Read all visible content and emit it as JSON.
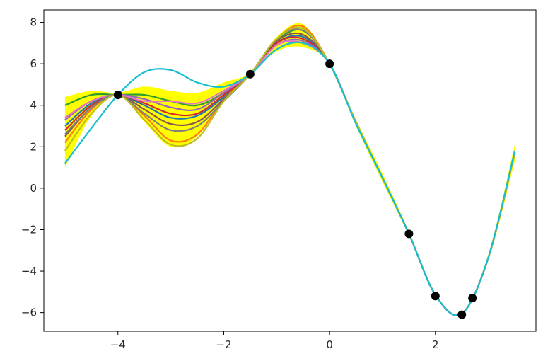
{
  "chart_data": {
    "type": "line",
    "title": "",
    "xlabel": "",
    "ylabel": "",
    "xlim": [
      -5.4,
      3.9
    ],
    "ylim": [
      -6.9,
      8.6
    ],
    "x_ticks": [
      -4,
      -2,
      0,
      2
    ],
    "x_tick_labels": [
      "−4",
      "−2",
      "0",
      "2"
    ],
    "y_ticks": [
      -6,
      -4,
      -2,
      0,
      2,
      4,
      6,
      8
    ],
    "y_tick_labels": [
      "−6",
      "−4",
      "−2",
      "0",
      "2",
      "4",
      "6",
      "8"
    ],
    "grid": false,
    "legend": "none",
    "band": {
      "color": "#ffff00",
      "x": [
        -5.0,
        -4.5,
        -4.0,
        -3.5,
        -3.0,
        -2.5,
        -2.0,
        -1.5,
        -1.0,
        -0.5,
        0.0,
        0.5,
        1.0,
        1.5,
        2.0,
        2.5,
        3.0,
        3.5
      ],
      "lower": [
        1.0,
        3.5,
        4.5,
        3.2,
        2.0,
        2.5,
        4.2,
        5.5,
        6.6,
        6.8,
        6.0,
        3.0,
        0.3,
        -2.3,
        -5.2,
        -6.1,
        -3.5,
        1.3
      ],
      "upper": [
        4.4,
        4.7,
        4.6,
        4.9,
        4.7,
        4.6,
        5.1,
        5.6,
        7.3,
        7.9,
        6.0,
        3.3,
        0.7,
        -2.1,
        -5.1,
        -6.0,
        -3.2,
        2.1
      ]
    },
    "observations": {
      "color": "#000000",
      "x": [
        -4.0,
        -1.5,
        0.0,
        1.5,
        2.0,
        2.5,
        2.7
      ],
      "y": [
        4.5,
        5.5,
        6.0,
        -2.2,
        -5.2,
        -6.1,
        -5.3
      ]
    },
    "x": [
      -5.0,
      -4.5,
      -4.0,
      -3.5,
      -3.0,
      -2.5,
      -2.0,
      -1.5,
      -1.0,
      -0.5,
      0.0,
      0.5,
      1.0,
      1.5,
      2.0,
      2.5,
      3.0,
      3.5
    ],
    "series": [
      {
        "color": "#1f77b4",
        "values": [
          3.0,
          4.1,
          4.5,
          4.0,
          3.4,
          3.5,
          4.4,
          5.5,
          7.0,
          7.3,
          6.0,
          3.15,
          0.5,
          -2.2,
          -5.15,
          -6.05,
          -3.35,
          1.75
        ]
      },
      {
        "color": "#ff7f0e",
        "values": [
          2.2,
          3.8,
          4.5,
          3.5,
          2.3,
          2.6,
          4.3,
          5.5,
          7.2,
          7.8,
          6.0,
          3.2,
          0.5,
          -2.2,
          -5.15,
          -6.05,
          -3.35,
          1.7
        ]
      },
      {
        "color": "#2ca02c",
        "values": [
          4.0,
          4.5,
          4.5,
          4.5,
          4.2,
          4.0,
          4.6,
          5.5,
          7.1,
          7.6,
          6.0,
          3.15,
          0.5,
          -2.2,
          -5.15,
          -6.05,
          -3.35,
          1.7
        ]
      },
      {
        "color": "#d62728",
        "values": [
          2.8,
          4.0,
          4.5,
          4.1,
          3.6,
          3.6,
          4.5,
          5.5,
          7.0,
          7.2,
          6.0,
          3.15,
          0.5,
          -2.2,
          -5.15,
          -6.05,
          -3.35,
          1.7
        ]
      },
      {
        "color": "#9467bd",
        "values": [
          3.3,
          4.2,
          4.5,
          4.3,
          3.9,
          3.8,
          4.6,
          5.5,
          6.9,
          7.1,
          6.0,
          3.15,
          0.5,
          -2.2,
          -5.15,
          -6.05,
          -3.35,
          1.7
        ]
      },
      {
        "color": "#8c564b",
        "values": [
          2.5,
          3.9,
          4.5,
          3.8,
          3.1,
          3.2,
          4.3,
          5.5,
          7.1,
          7.4,
          6.0,
          3.15,
          0.5,
          -2.2,
          -5.15,
          -6.05,
          -3.35,
          1.7
        ]
      },
      {
        "color": "#e377c2",
        "values": [
          3.4,
          4.2,
          4.5,
          4.2,
          4.2,
          4.1,
          4.7,
          5.5,
          6.9,
          7.0,
          6.0,
          3.15,
          0.5,
          -2.2,
          -5.15,
          -6.05,
          -3.35,
          1.7
        ]
      },
      {
        "color": "#7f7f7f",
        "values": [
          2.6,
          3.9,
          4.5,
          3.6,
          2.8,
          3.0,
          4.2,
          5.5,
          7.2,
          7.6,
          6.0,
          3.15,
          0.5,
          -2.2,
          -5.15,
          -6.05,
          -3.35,
          1.7
        ]
      },
      {
        "color": "#bcbd22",
        "values": [
          1.8,
          3.6,
          4.5,
          3.3,
          2.1,
          2.4,
          4.2,
          5.5,
          7.2,
          7.7,
          6.0,
          3.2,
          0.5,
          -2.2,
          -5.15,
          -6.05,
          -3.35,
          1.7
        ]
      },
      {
        "color": "#17becf",
        "values": [
          1.2,
          2.9,
          4.5,
          5.6,
          5.7,
          5.1,
          4.9,
          5.5,
          6.7,
          7.0,
          6.0,
          3.1,
          0.5,
          -2.2,
          -5.15,
          -6.05,
          -3.35,
          1.8
        ]
      }
    ]
  }
}
